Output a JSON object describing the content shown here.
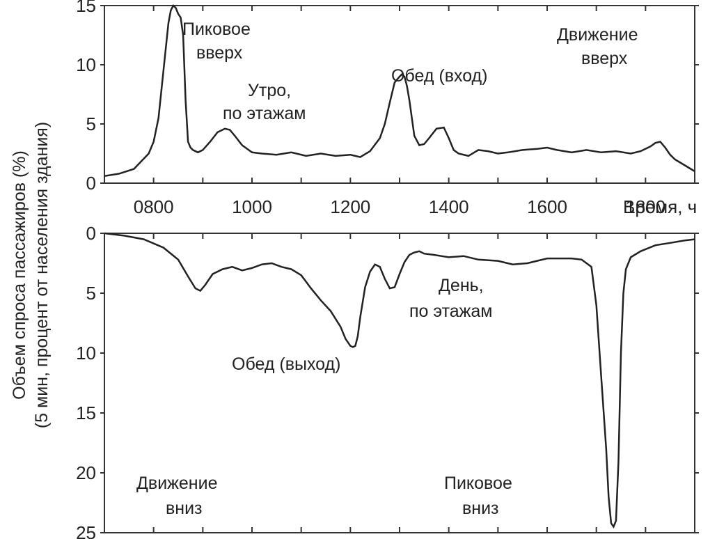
{
  "chart_data": {
    "ylabel_line1": "Объем спроса пассажиров (%)",
    "ylabel_line2": "(5 мин, процент от населения здания)",
    "xlabel": "Время, ч",
    "xlim": [
      700,
      1900
    ],
    "x_ticks": [
      "0800",
      "1000",
      "1200",
      "1400",
      "1600",
      "1800"
    ],
    "panels": [
      {
        "type": "line",
        "ylim": [
          0,
          15
        ],
        "y_ticks": [
          "0",
          "5",
          "10",
          "15"
        ],
        "annotations": [
          {
            "id": "up-peak",
            "lines": [
              "Пиковое",
              "вверх"
            ]
          },
          {
            "id": "morning-interfloor",
            "lines": [
              "Утро,",
              "по этажам"
            ]
          },
          {
            "id": "lunch-in",
            "lines": [
              "Обед (вход)"
            ]
          },
          {
            "id": "up-traffic",
            "lines": [
              "Движение",
              "вверх"
            ]
          }
        ],
        "series": [
          {
            "x": [
              700,
              730,
              760,
              790,
              800,
              810,
              820,
              830,
              835,
              840,
              845,
              850,
              855,
              860,
              865,
              870,
              875,
              880,
              890,
              900,
              915,
              930,
              945,
              955,
              965,
              980,
              1000,
              1020,
              1050,
              1080,
              1110,
              1140,
              1170,
              1200,
              1220,
              1240,
              1260,
              1270,
              1280,
              1290,
              1300,
              1305,
              1310,
              1315,
              1320,
              1330,
              1340,
              1350,
              1360,
              1375,
              1390,
              1400,
              1410,
              1420,
              1440,
              1460,
              1480,
              1500,
              1520,
              1550,
              1580,
              1600,
              1620,
              1650,
              1680,
              1710,
              1740,
              1770,
              1790,
              1810,
              1820,
              1830,
              1840,
              1850,
              1860,
              1880,
              1900
            ],
            "y": [
              0.6,
              0.8,
              1.2,
              2.5,
              3.5,
              5.5,
              9.5,
              13.5,
              14.6,
              15.0,
              14.8,
              14.3,
              14.0,
              12.5,
              7,
              3.5,
              3.0,
              2.8,
              2.6,
              2.8,
              3.5,
              4.3,
              4.6,
              4.5,
              4.0,
              3.2,
              2.6,
              2.5,
              2.4,
              2.6,
              2.3,
              2.5,
              2.3,
              2.4,
              2.2,
              2.7,
              3.8,
              5.0,
              6.8,
              8.5,
              9.0,
              9.2,
              9.0,
              8.2,
              7.0,
              4.0,
              3.2,
              3.3,
              3.8,
              4.6,
              4.7,
              3.8,
              2.8,
              2.5,
              2.3,
              2.8,
              2.7,
              2.5,
              2.6,
              2.8,
              2.9,
              3.0,
              2.8,
              2.6,
              2.8,
              2.6,
              2.7,
              2.5,
              2.7,
              3.1,
              3.4,
              3.5,
              3.0,
              2.4,
              2.0,
              1.5,
              1.0
            ]
          }
        ]
      },
      {
        "type": "line",
        "ylim": [
          0,
          25
        ],
        "inverted": true,
        "y_ticks": [
          "0",
          "5",
          "10",
          "15",
          "20",
          "25"
        ],
        "annotations": [
          {
            "id": "lunch-out",
            "lines": [
              "Обед (выход)"
            ]
          },
          {
            "id": "afternoon-interfloor",
            "lines": [
              "День,",
              "по этажам"
            ]
          },
          {
            "id": "down-traffic",
            "lines": [
              "Движение",
              "вниз"
            ]
          },
          {
            "id": "down-peak",
            "lines": [
              "Пиковое",
              "вниз"
            ]
          }
        ],
        "series": [
          {
            "x": [
              700,
              740,
              780,
              820,
              850,
              870,
              885,
              895,
              905,
              920,
              940,
              960,
              980,
              1000,
              1020,
              1040,
              1060,
              1080,
              1100,
              1120,
              1140,
              1160,
              1180,
              1190,
              1200,
              1205,
              1210,
              1215,
              1220,
              1230,
              1240,
              1250,
              1260,
              1270,
              1280,
              1290,
              1300,
              1310,
              1320,
              1330,
              1340,
              1350,
              1370,
              1400,
              1430,
              1460,
              1500,
              1530,
              1560,
              1600,
              1630,
              1650,
              1670,
              1690,
              1700,
              1710,
              1720,
              1725,
              1730,
              1735,
              1740,
              1745,
              1750,
              1755,
              1760,
              1770,
              1790,
              1820,
              1850,
              1880,
              1900
            ],
            "y": [
              0,
              0.2,
              0.5,
              1.2,
              2.2,
              3.6,
              4.6,
              4.8,
              4.3,
              3.4,
              3.0,
              2.8,
              3.1,
              2.9,
              2.6,
              2.5,
              2.8,
              3.0,
              3.5,
              4.6,
              5.6,
              6.5,
              7.8,
              8.8,
              9.4,
              9.5,
              9.4,
              8.6,
              7.0,
              4.5,
              3.2,
              2.6,
              2.8,
              3.8,
              4.6,
              4.5,
              3.4,
              2.4,
              1.8,
              1.6,
              1.5,
              1.7,
              1.8,
              2.0,
              1.9,
              2.2,
              2.3,
              2.6,
              2.5,
              2.1,
              2.1,
              2.1,
              2.2,
              2.8,
              6,
              12,
              18,
              22,
              24.2,
              24.5,
              24.0,
              19,
              10,
              5,
              3,
              2.0,
              1.5,
              1.0,
              0.8,
              0.6,
              0.5
            ]
          }
        ]
      }
    ]
  }
}
